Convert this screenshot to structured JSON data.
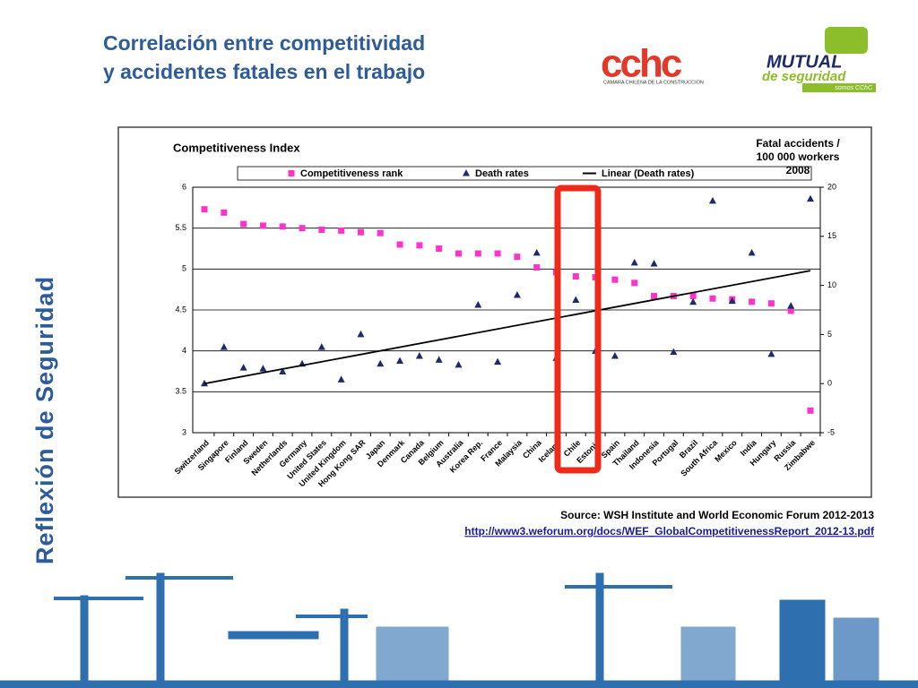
{
  "header": {
    "title_lines": [
      "Correlación entre competitividad",
      "y accidentes fatales en el trabajo"
    ],
    "side_label": "Reflexión de Seguridad",
    "logos": {
      "cchc": "cchc",
      "cchc_caption": "CAMARA CHILENA DE LA CONSTRUCCION",
      "mutual": "MUTUAL",
      "mutual_sub": "de seguridad",
      "mutual_tag": "somos CChC"
    }
  },
  "chart_data": {
    "type": "scatter",
    "title": "Competitiveness Index",
    "y2_title_lines": [
      "Fatal accidents  /",
      "100 000 workers",
      "2008"
    ],
    "categories": [
      "Switzerland",
      "Singapore",
      "Finland",
      "Sweden",
      "Netherlands",
      "Germany",
      "United States",
      "United Kingdom",
      "Hong Kong SAR",
      "Japan",
      "Denmark",
      "Canada",
      "Belgium",
      "Australia",
      "Korea Rep.",
      "France",
      "Malaysia",
      "China",
      "Iceland",
      "Chile",
      "Estonia",
      "Spain",
      "Thailand",
      "Indonesia",
      "Portugal",
      "Brazil",
      "South Africa",
      "Mexico",
      "India",
      "Hungary",
      "Russia",
      "Zimbabwe"
    ],
    "series": [
      {
        "name": "Competitiveness rank",
        "color": "#ff33cc",
        "marker": "square",
        "values": [
          5.73,
          5.69,
          5.55,
          5.53,
          5.52,
          5.5,
          5.48,
          5.47,
          5.45,
          5.44,
          5.3,
          5.29,
          5.25,
          5.19,
          5.19,
          5.19,
          5.15,
          5.02,
          4.96,
          4.91,
          4.9,
          4.87,
          4.83,
          4.67,
          4.67,
          4.67,
          4.64,
          4.63,
          4.6,
          4.58,
          4.49,
          3.27
        ]
      },
      {
        "name": "Death rates",
        "color": "#1f2a6b",
        "marker": "triangle",
        "axis": "y2",
        "values": [
          0,
          3.7,
          1.6,
          1.5,
          1.2,
          2.0,
          3.7,
          0.4,
          5,
          2,
          2.3,
          2.8,
          2.4,
          1.9,
          8,
          2.2,
          9,
          13.3,
          2.6,
          8.5,
          3.3,
          2.8,
          12.3,
          12.2,
          3.2,
          8.3,
          18.6,
          8.4,
          13.3,
          3,
          7.9,
          18.8
        ]
      }
    ],
    "trendline": {
      "name": "Linear (Death rates)",
      "color": "#000000",
      "axis": "y2",
      "values": [
        0,
        11.5
      ]
    },
    "ylim": [
      3,
      6
    ],
    "yticks": [
      3,
      3.5,
      4,
      4.5,
      5,
      5.5,
      6
    ],
    "y2lim": [
      -5,
      20
    ],
    "y2ticks": [
      -5,
      0,
      5,
      10,
      15,
      20
    ],
    "grid": true
  },
  "footer": {
    "source": "Source: WSH Institute and World Economic Forum 2012-2013",
    "url": "http://www3.weforum.org/docs/WEF_GlobalCompetitivenessReport_2012-13.pdf"
  }
}
